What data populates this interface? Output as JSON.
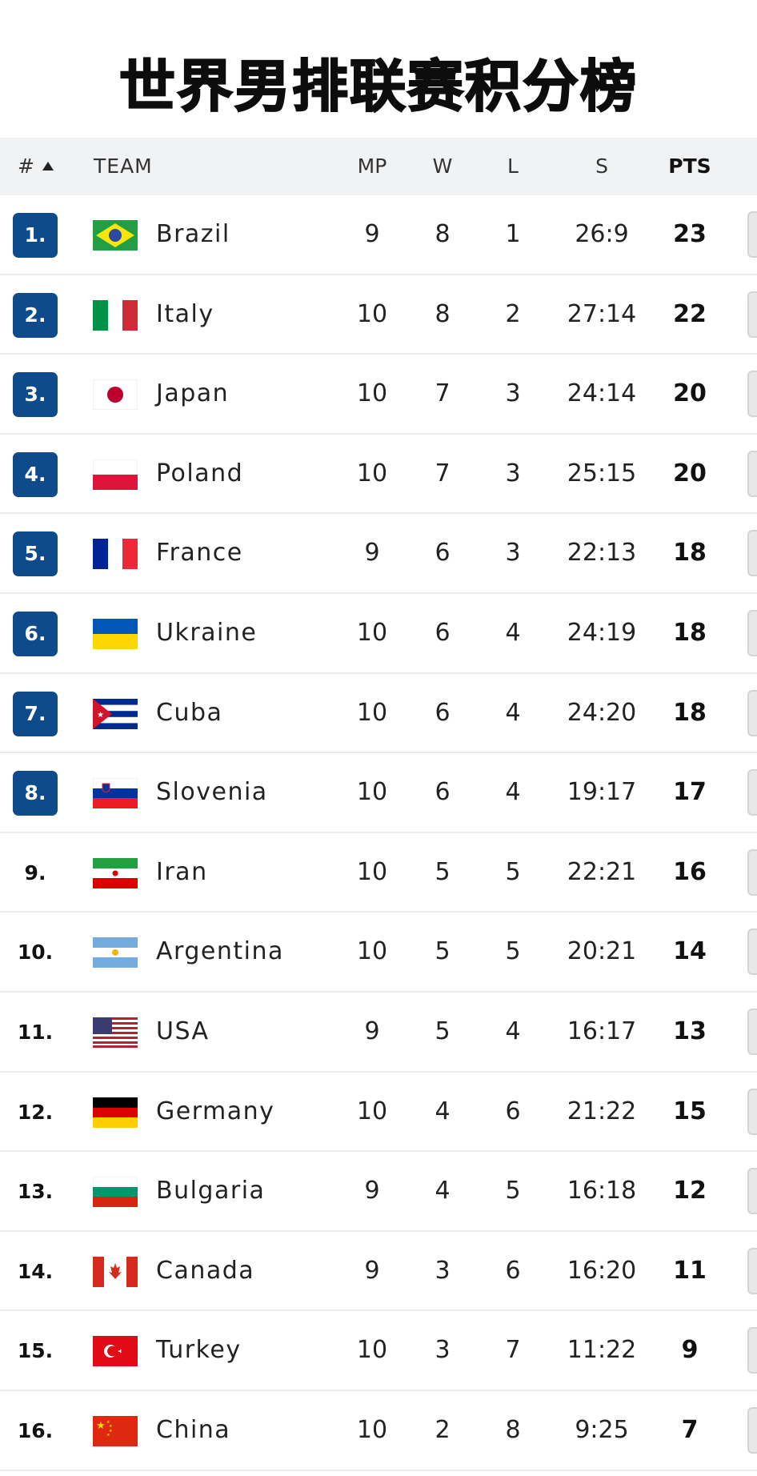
{
  "title": "世界男排联赛积分榜",
  "header": {
    "rank": "#",
    "team": "TEAM",
    "mp": "MP",
    "w": "W",
    "l": "L",
    "s": "S",
    "pts": "PTS"
  },
  "colors": {
    "qualified_badge": "#0f4b8a",
    "header_bg": "#f1f2f4"
  },
  "rows": [
    {
      "rank": "1.",
      "qualified": true,
      "flag": "flag-brazil",
      "team": "Brazil",
      "mp": "9",
      "w": "8",
      "l": "1",
      "s": "26:9",
      "pts": "23"
    },
    {
      "rank": "2.",
      "qualified": true,
      "flag": "flag-italy",
      "team": "Italy",
      "mp": "10",
      "w": "8",
      "l": "2",
      "s": "27:14",
      "pts": "22"
    },
    {
      "rank": "3.",
      "qualified": true,
      "flag": "flag-japan",
      "team": "Japan",
      "mp": "10",
      "w": "7",
      "l": "3",
      "s": "24:14",
      "pts": "20"
    },
    {
      "rank": "4.",
      "qualified": true,
      "flag": "flag-poland",
      "team": "Poland",
      "mp": "10",
      "w": "7",
      "l": "3",
      "s": "25:15",
      "pts": "20"
    },
    {
      "rank": "5.",
      "qualified": true,
      "flag": "flag-france",
      "team": "France",
      "mp": "9",
      "w": "6",
      "l": "3",
      "s": "22:13",
      "pts": "18"
    },
    {
      "rank": "6.",
      "qualified": true,
      "flag": "flag-ukraine",
      "team": "Ukraine",
      "mp": "10",
      "w": "6",
      "l": "4",
      "s": "24:19",
      "pts": "18"
    },
    {
      "rank": "7.",
      "qualified": true,
      "flag": "flag-cuba",
      "team": "Cuba",
      "mp": "10",
      "w": "6",
      "l": "4",
      "s": "24:20",
      "pts": "18"
    },
    {
      "rank": "8.",
      "qualified": true,
      "flag": "flag-slovenia",
      "team": "Slovenia",
      "mp": "10",
      "w": "6",
      "l": "4",
      "s": "19:17",
      "pts": "17"
    },
    {
      "rank": "9.",
      "qualified": false,
      "flag": "flag-iran",
      "team": "Iran",
      "mp": "10",
      "w": "5",
      "l": "5",
      "s": "22:21",
      "pts": "16"
    },
    {
      "rank": "10.",
      "qualified": false,
      "flag": "flag-argentina",
      "team": "Argentina",
      "mp": "10",
      "w": "5",
      "l": "5",
      "s": "20:21",
      "pts": "14"
    },
    {
      "rank": "11.",
      "qualified": false,
      "flag": "flag-usa",
      "team": "USA",
      "mp": "9",
      "w": "5",
      "l": "4",
      "s": "16:17",
      "pts": "13"
    },
    {
      "rank": "12.",
      "qualified": false,
      "flag": "flag-germany",
      "team": "Germany",
      "mp": "10",
      "w": "4",
      "l": "6",
      "s": "21:22",
      "pts": "15"
    },
    {
      "rank": "13.",
      "qualified": false,
      "flag": "flag-bulgaria",
      "team": "Bulgaria",
      "mp": "9",
      "w": "4",
      "l": "5",
      "s": "16:18",
      "pts": "12"
    },
    {
      "rank": "14.",
      "qualified": false,
      "flag": "flag-canada",
      "team": "Canada",
      "mp": "9",
      "w": "3",
      "l": "6",
      "s": "16:20",
      "pts": "11"
    },
    {
      "rank": "15.",
      "qualified": false,
      "flag": "flag-turkey",
      "team": "Turkey",
      "mp": "10",
      "w": "3",
      "l": "7",
      "s": "11:22",
      "pts": "9"
    },
    {
      "rank": "16.",
      "qualified": false,
      "flag": "flag-china",
      "team": "China",
      "mp": "10",
      "w": "2",
      "l": "8",
      "s": "9:25",
      "pts": "7"
    }
  ]
}
